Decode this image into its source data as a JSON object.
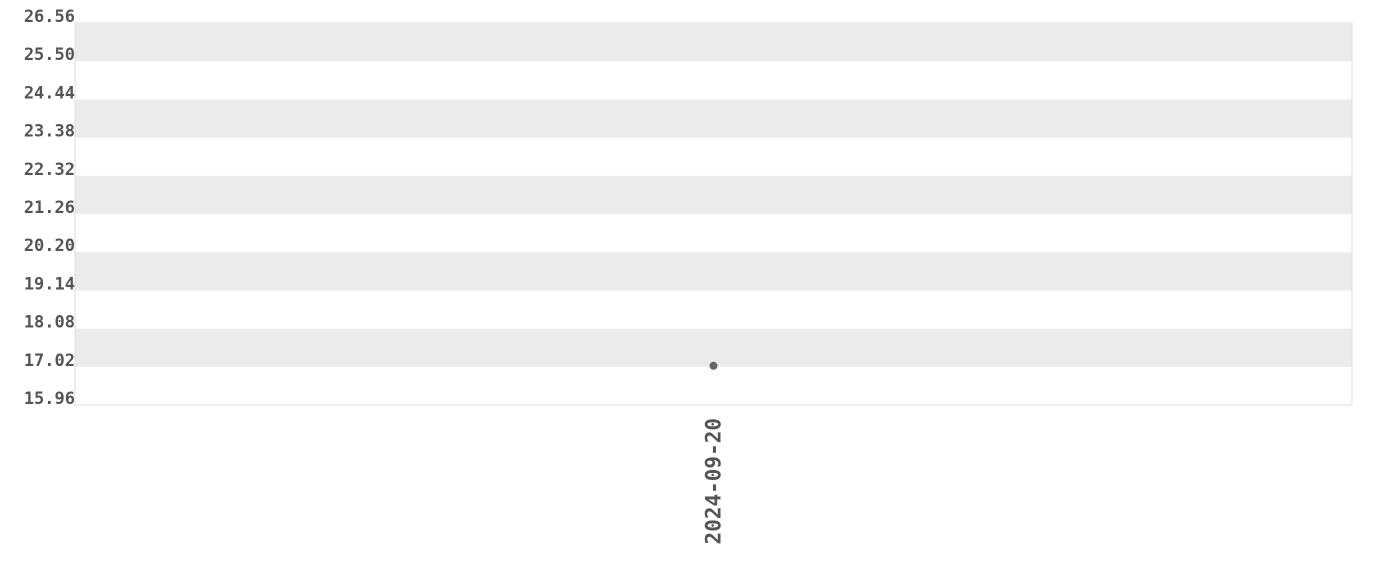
{
  "chart_data": {
    "type": "scatter",
    "title": "",
    "xlabel": "",
    "ylabel": "",
    "ylim": [
      15.96,
      26.56
    ],
    "y_ticks": [
      "26.56",
      "25.50",
      "24.44",
      "23.38",
      "22.32",
      "21.26",
      "20.20",
      "19.14",
      "18.08",
      "17.02",
      "15.96"
    ],
    "x_ticks": [
      "2024-09-20"
    ],
    "grid": "alternating horizontal bands",
    "band_color": "#ebebeb",
    "point_color": "#666666",
    "points": [
      {
        "x": "2024-09-20",
        "y": 17.02
      }
    ]
  }
}
